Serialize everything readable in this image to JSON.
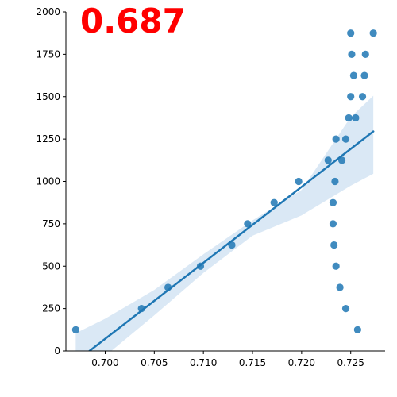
{
  "chart_data": {
    "type": "scatter",
    "title": "",
    "xlabel": "",
    "ylabel": "",
    "annotation": "0.687",
    "xlim": [
      0.696,
      0.7285
    ],
    "ylim": [
      0,
      2000
    ],
    "x_ticks": [
      0.7,
      0.705,
      0.71,
      0.715,
      0.72,
      0.725
    ],
    "x_tick_labels": [
      "0.700",
      "0.705",
      "0.710",
      "0.715",
      "0.720",
      "0.725"
    ],
    "y_ticks": [
      0,
      250,
      500,
      750,
      1000,
      1250,
      1500,
      1750,
      2000
    ],
    "y_tick_labels": [
      "0",
      "250",
      "500",
      "750",
      "1000",
      "1250",
      "1500",
      "1750",
      "2000"
    ],
    "grid": false,
    "colors": {
      "points": "#1f77b4",
      "regression_line": "#1f77b4",
      "confidence_band": "#c6dbef",
      "annotation": "#ff0000"
    },
    "points": [
      {
        "x": 0.697,
        "y": 125
      },
      {
        "x": 0.7037,
        "y": 250
      },
      {
        "x": 0.7064,
        "y": 375
      },
      {
        "x": 0.7097,
        "y": 500
      },
      {
        "x": 0.7129,
        "y": 625
      },
      {
        "x": 0.7145,
        "y": 750
      },
      {
        "x": 0.7172,
        "y": 875
      },
      {
        "x": 0.7197,
        "y": 1000
      },
      {
        "x": 0.7227,
        "y": 1125
      },
      {
        "x": 0.7235,
        "y": 1250
      },
      {
        "x": 0.7248,
        "y": 1375
      },
      {
        "x": 0.725,
        "y": 1500
      },
      {
        "x": 0.7251,
        "y": 1750
      },
      {
        "x": 0.725,
        "y": 1875
      },
      {
        "x": 0.7253,
        "y": 1625
      },
      {
        "x": 0.7255,
        "y": 1375
      },
      {
        "x": 0.7262,
        "y": 1500
      },
      {
        "x": 0.7264,
        "y": 1625
      },
      {
        "x": 0.7265,
        "y": 1750
      },
      {
        "x": 0.7273,
        "y": 1875
      },
      {
        "x": 0.7241,
        "y": 1125
      },
      {
        "x": 0.7245,
        "y": 1250
      },
      {
        "x": 0.7234,
        "y": 1000
      },
      {
        "x": 0.7232,
        "y": 875
      },
      {
        "x": 0.7232,
        "y": 750
      },
      {
        "x": 0.7233,
        "y": 625
      },
      {
        "x": 0.7235,
        "y": 500
      },
      {
        "x": 0.7239,
        "y": 375
      },
      {
        "x": 0.7245,
        "y": 250
      },
      {
        "x": 0.7257,
        "y": 125
      }
    ],
    "regression_line": {
      "x": [
        0.6984,
        0.7273
      ],
      "y": [
        0,
        1295
      ]
    },
    "confidence_band": {
      "x": [
        0.697,
        0.7,
        0.705,
        0.71,
        0.715,
        0.72,
        0.725,
        0.7273
      ],
      "upper": [
        105,
        190,
        360,
        570,
        770,
        950,
        1380,
        1505
      ],
      "lower": [
        -130,
        -30,
        210,
        460,
        680,
        800,
        975,
        1045
      ]
    }
  }
}
